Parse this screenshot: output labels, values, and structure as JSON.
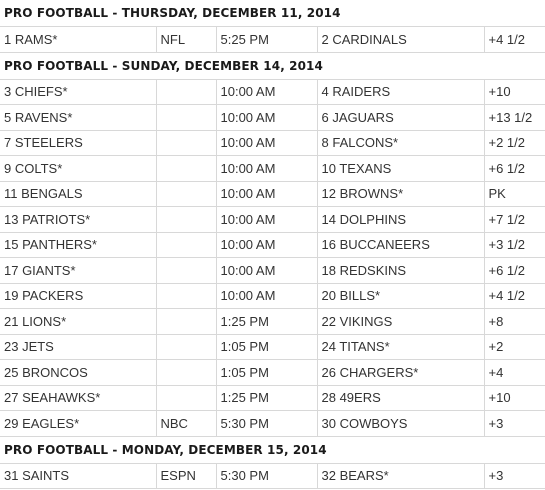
{
  "sections": [
    {
      "header": "PRO FOOTBALL - THURSDAY, DECEMBER 11, 2014",
      "games": [
        {
          "away": "1 RAMS*",
          "network": "NFL",
          "time": "5:25 PM",
          "home": "2 CARDINALS",
          "line": "+4 1/2"
        }
      ]
    },
    {
      "header": "PRO FOOTBALL - SUNDAY, DECEMBER 14, 2014",
      "games": [
        {
          "away": "3 CHIEFS*",
          "network": "",
          "time": "10:00 AM",
          "home": "4 RAIDERS",
          "line": "+10"
        },
        {
          "away": "5 RAVENS*",
          "network": "",
          "time": "10:00 AM",
          "home": "6 JAGUARS",
          "line": "+13 1/2"
        },
        {
          "away": "7 STEELERS",
          "network": "",
          "time": "10:00 AM",
          "home": "8 FALCONS*",
          "line": "+2 1/2"
        },
        {
          "away": "9 COLTS*",
          "network": "",
          "time": "10:00 AM",
          "home": "10 TEXANS",
          "line": "+6 1/2"
        },
        {
          "away": "11 BENGALS",
          "network": "",
          "time": "10:00 AM",
          "home": "12 BROWNS*",
          "line": "PK"
        },
        {
          "away": "13 PATRIOTS*",
          "network": "",
          "time": "10:00 AM",
          "home": "14 DOLPHINS",
          "line": "+7 1/2"
        },
        {
          "away": "15 PANTHERS*",
          "network": "",
          "time": "10:00 AM",
          "home": "16 BUCCANEERS",
          "line": "+3 1/2"
        },
        {
          "away": "17 GIANTS*",
          "network": "",
          "time": "10:00 AM",
          "home": "18 REDSKINS",
          "line": "+6 1/2"
        },
        {
          "away": "19 PACKERS",
          "network": "",
          "time": "10:00 AM",
          "home": "20 BILLS*",
          "line": "+4 1/2"
        },
        {
          "away": "21 LIONS*",
          "network": "",
          "time": "1:25 PM",
          "home": "22 VIKINGS",
          "line": "+8"
        },
        {
          "away": "23 JETS",
          "network": "",
          "time": "1:05 PM",
          "home": "24 TITANS*",
          "line": "+2"
        },
        {
          "away": "25 BRONCOS",
          "network": "",
          "time": "1:05 PM",
          "home": "26 CHARGERS*",
          "line": "+4"
        },
        {
          "away": "27 SEAHAWKS*",
          "network": "",
          "time": "1:25 PM",
          "home": "28 49ERS",
          "line": "+10"
        },
        {
          "away": "29 EAGLES*",
          "network": "NBC",
          "time": "5:30 PM",
          "home": "30 COWBOYS",
          "line": "+3"
        }
      ]
    },
    {
      "header": "PRO FOOTBALL - MONDAY, DECEMBER 15, 2014",
      "games": [
        {
          "away": "31 SAINTS",
          "network": "ESPN",
          "time": "5:30 PM",
          "home": "32 BEARS*",
          "line": "+3"
        }
      ]
    }
  ]
}
